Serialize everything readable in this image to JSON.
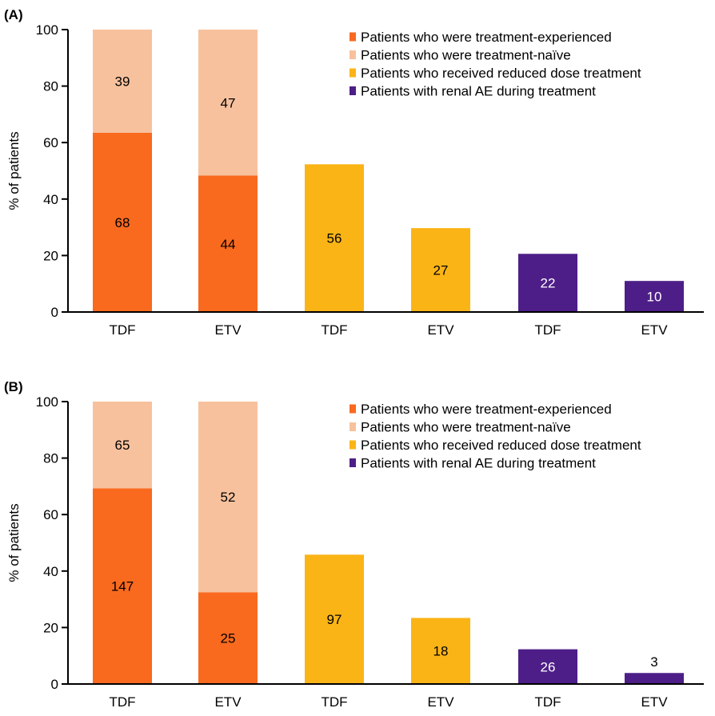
{
  "colors": {
    "experienced": "#f96a1f",
    "naive": "#f8c19d",
    "reduced": "#fbb416",
    "renal": "#4e1e88",
    "axis": "#000000",
    "label_dark": "#000000",
    "label_light": "#ffffff"
  },
  "legend": [
    {
      "key": "experienced",
      "label": "Patients who were treatment-experienced"
    },
    {
      "key": "naive",
      "label": "Patients who were treatment-naïve"
    },
    {
      "key": "reduced",
      "label": "Patients who received reduced dose treatment"
    },
    {
      "key": "renal",
      "label": "Patients with renal AE during treatment"
    }
  ],
  "chart_data": [
    {
      "panel": "(A)",
      "type": "bar",
      "stacked": true,
      "ylabel": "% of patients",
      "ylim": [
        0,
        100
      ],
      "yticks": [
        0,
        20,
        40,
        60,
        80,
        100
      ],
      "legend_position": "top-right",
      "categories": [
        "TDF",
        "ETV",
        "TDF",
        "ETV",
        "TDF",
        "ETV"
      ],
      "bars": [
        {
          "category": "TDF",
          "segments": [
            {
              "key": "experienced",
              "value": 63.5,
              "label": "68"
            },
            {
              "key": "naive",
              "value": 36.5,
              "label": "39"
            }
          ]
        },
        {
          "category": "ETV",
          "segments": [
            {
              "key": "experienced",
              "value": 48.3,
              "label": "44"
            },
            {
              "key": "naive",
              "value": 51.7,
              "label": "47"
            }
          ]
        },
        {
          "category": "TDF",
          "segments": [
            {
              "key": "reduced",
              "value": 52.3,
              "label": "56"
            }
          ]
        },
        {
          "category": "ETV",
          "segments": [
            {
              "key": "reduced",
              "value": 29.7,
              "label": "27"
            }
          ]
        },
        {
          "category": "TDF",
          "segments": [
            {
              "key": "renal",
              "value": 20.6,
              "label": "22"
            }
          ]
        },
        {
          "category": "ETV",
          "segments": [
            {
              "key": "renal",
              "value": 11.0,
              "label": "10"
            }
          ]
        }
      ]
    },
    {
      "panel": "(B)",
      "type": "bar",
      "stacked": true,
      "ylabel": "% of patients",
      "ylim": [
        0,
        100
      ],
      "yticks": [
        0,
        20,
        40,
        60,
        80,
        100
      ],
      "legend_position": "top-right",
      "categories": [
        "TDF",
        "ETV",
        "TDF",
        "ETV",
        "TDF",
        "ETV"
      ],
      "bars": [
        {
          "category": "TDF",
          "segments": [
            {
              "key": "experienced",
              "value": 69.3,
              "label": "147"
            },
            {
              "key": "naive",
              "value": 30.7,
              "label": "65"
            }
          ]
        },
        {
          "category": "ETV",
          "segments": [
            {
              "key": "experienced",
              "value": 32.5,
              "label": "25"
            },
            {
              "key": "naive",
              "value": 67.5,
              "label": "52"
            }
          ]
        },
        {
          "category": "TDF",
          "segments": [
            {
              "key": "reduced",
              "value": 45.8,
              "label": "97"
            }
          ]
        },
        {
          "category": "ETV",
          "segments": [
            {
              "key": "reduced",
              "value": 23.4,
              "label": "18"
            }
          ]
        },
        {
          "category": "TDF",
          "segments": [
            {
              "key": "renal",
              "value": 12.3,
              "label": "26"
            }
          ]
        },
        {
          "category": "ETV",
          "segments": [
            {
              "key": "renal",
              "value": 3.9,
              "label": "3",
              "label_outside": true
            }
          ]
        }
      ]
    }
  ]
}
